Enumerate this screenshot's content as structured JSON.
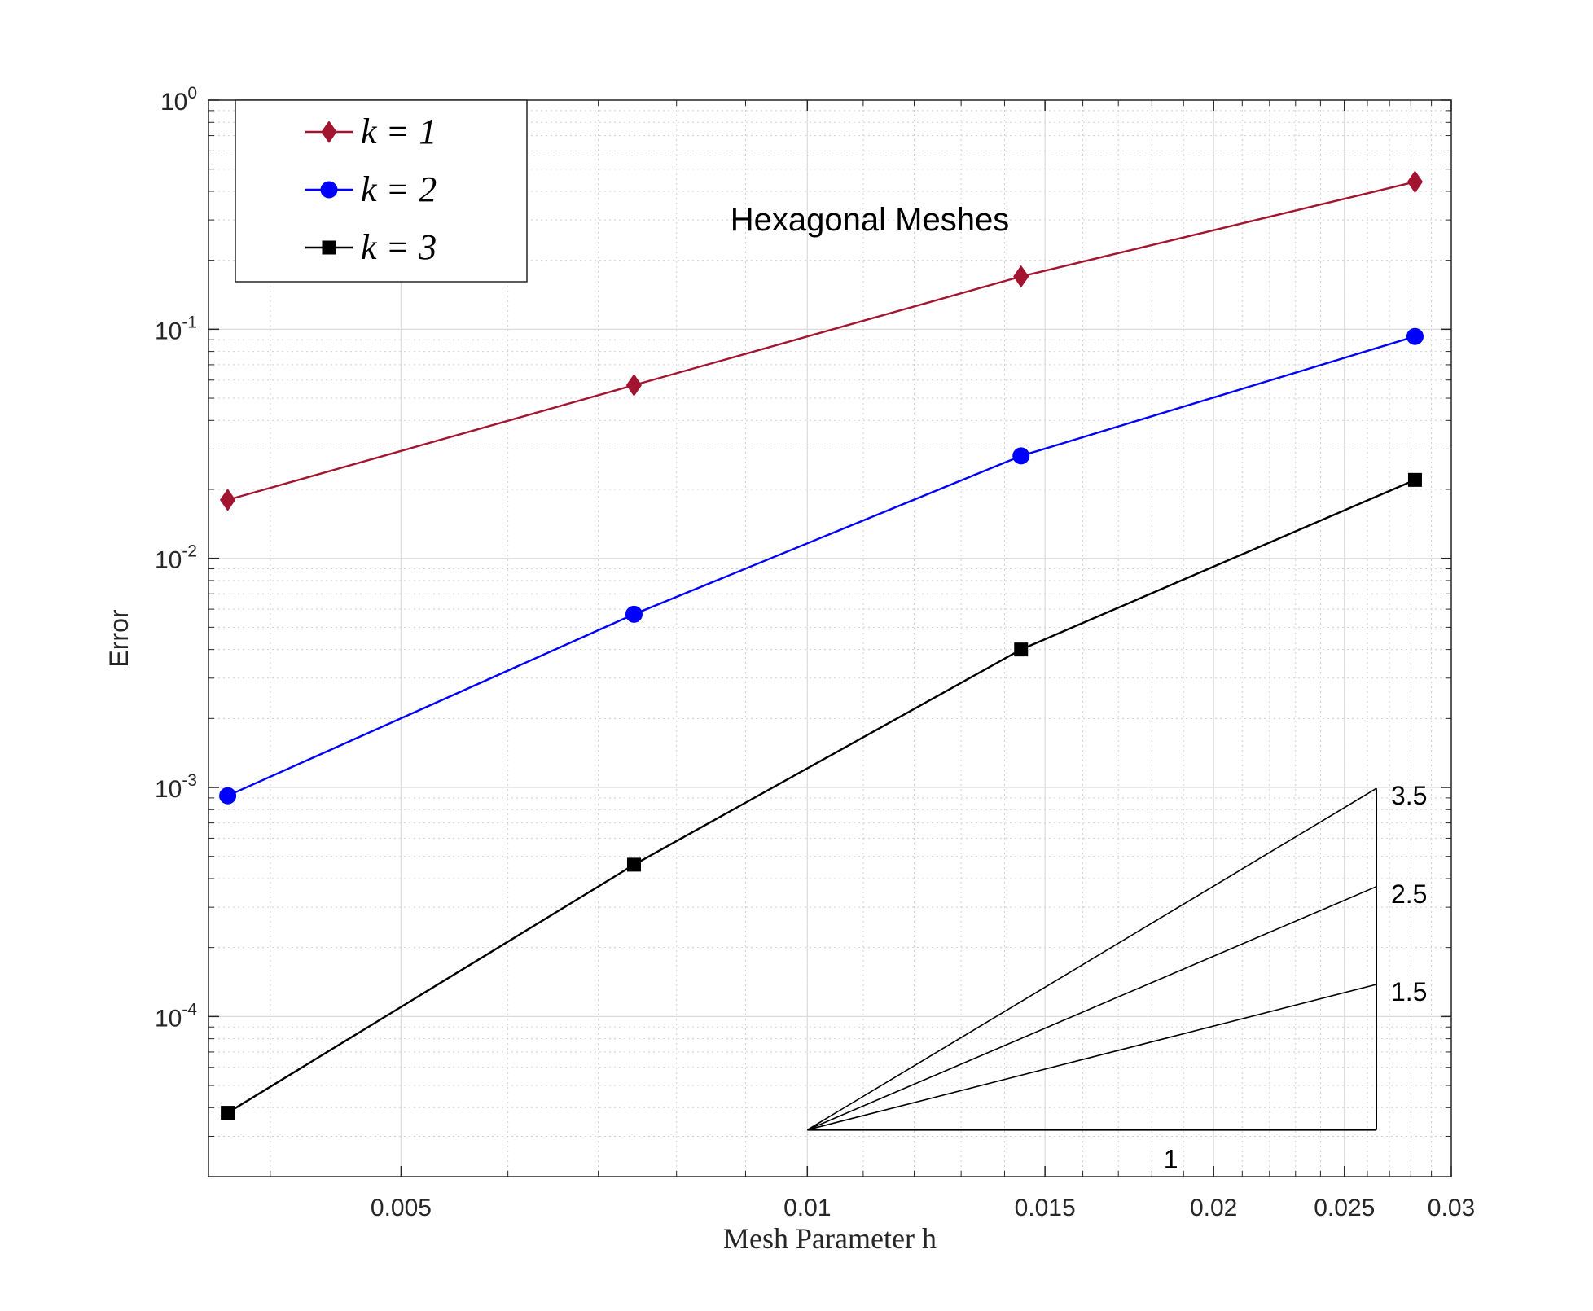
{
  "chart_data": {
    "type": "line",
    "title": "Hexagonal Meshes",
    "xlabel": "Mesh Parameter h",
    "ylabel": "Error",
    "xscale": "log",
    "yscale": "log",
    "xlim": [
      0.0036,
      0.03
    ],
    "ylim": [
      2e-05,
      1
    ],
    "xticks": [
      0.005,
      0.01,
      0.015,
      0.02,
      0.025,
      0.03
    ],
    "xtick_labels": [
      "0.005",
      "0.01",
      "0.015",
      "0.02",
      "0.025",
      "0.03"
    ],
    "yticks": [
      0.0001,
      0.001,
      0.01,
      0.1,
      1
    ],
    "ytick_labels": [
      {
        "base": "10",
        "exp": "-4"
      },
      {
        "base": "10",
        "exp": "-3"
      },
      {
        "base": "10",
        "exp": "-2"
      },
      {
        "base": "10",
        "exp": "-1"
      },
      {
        "base": "10",
        "exp": "0"
      }
    ],
    "grid": true,
    "minor_grid": true,
    "legend_position": "top-left",
    "x": [
      0.00372,
      0.00744,
      0.0144,
      0.0282
    ],
    "series": [
      {
        "name": "k = 1",
        "marker": "diamond",
        "color": "#a2142f",
        "values": [
          0.018,
          0.057,
          0.17,
          0.44
        ]
      },
      {
        "name": "k = 2",
        "marker": "circle",
        "color": "#0000ff",
        "values": [
          0.00092,
          0.0057,
          0.028,
          0.093
        ]
      },
      {
        "name": "k = 3",
        "marker": "square",
        "color": "#000000",
        "values": [
          3.8e-05,
          0.00046,
          0.004,
          0.022
        ]
      }
    ],
    "slope_triangle": {
      "x": [
        0.01,
        0.0264
      ],
      "y_base": 3.2e-05,
      "run_label": "1",
      "slopes": [
        {
          "slope": 3.5,
          "label": "3.5",
          "y_end": 0.00099
        },
        {
          "slope": 2.5,
          "label": "2.5",
          "y_end": 0.000369
        },
        {
          "slope": 1.5,
          "label": "1.5",
          "y_end": 0.000138
        }
      ]
    }
  }
}
